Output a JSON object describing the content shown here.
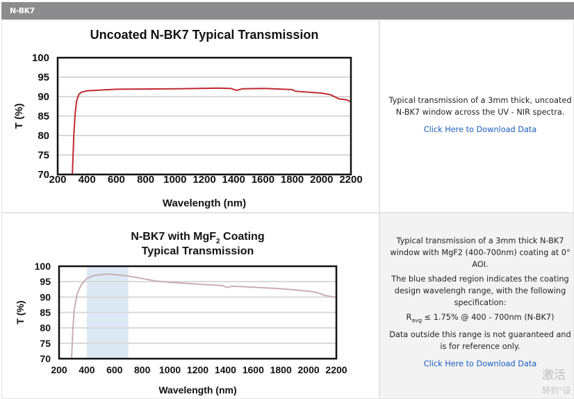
{
  "section_title": "N-BK7",
  "row1": {
    "description": "Typical transmission of a 3mm thick, uncoated N-BK7 window across the UV - NIR spectra.",
    "link": "Click Here to Download Data"
  },
  "row2": {
    "description1": "Typical transmission of a 3mm thick N-BK7 window with MgF2 (400-700nm) coating at 0° AOI.",
    "description2": "The blue shaded region indicates the coating design wavelengh range, with the following specification:",
    "spec_r": "R",
    "spec_sub": "avg",
    "spec_rest": " ≤ 1.75% @ 400 - 700nm (N-BK7)",
    "description3": "Data outside this range is not guaranteed and is for reference only.",
    "link": "Click Here to Download Data"
  },
  "watermark": {
    "line1": "激活",
    "line2": "转到\"设"
  },
  "chart_data": [
    {
      "type": "line",
      "title": "Uncoated N-BK7 Typical Transmission",
      "xlabel": "Wavelength (nm)",
      "ylabel": "T (%)",
      "xlim": [
        200,
        2200
      ],
      "ylim": [
        70,
        100
      ],
      "xticks": [
        "200",
        "400",
        "600",
        "800",
        "1000",
        "1200",
        "1400",
        "1600",
        "1800",
        "2000",
        "2200"
      ],
      "yticks": [
        "70",
        "75",
        "80",
        "85",
        "90",
        "95",
        "100"
      ],
      "grid": true,
      "color": "#c0282e",
      "x": [
        300,
        310,
        320,
        330,
        345,
        360,
        400,
        600,
        1000,
        1300,
        1380,
        1420,
        1460,
        1600,
        1800,
        1820,
        2000,
        2060,
        2120,
        2170,
        2200
      ],
      "y": [
        70,
        80,
        86,
        89,
        90.6,
        91.1,
        91.5,
        91.9,
        92,
        92.2,
        92.1,
        91.6,
        92,
        92.1,
        91.8,
        91.4,
        90.9,
        90.5,
        89.4,
        89.2,
        88.6
      ]
    },
    {
      "type": "line",
      "title": "N-BK7 with MgF",
      "title_sub": "2",
      "title_rest": " Coating",
      "title_line2": "Typical Transmission",
      "xlabel": "Wavelength (nm)",
      "ylabel": "T (%)",
      "xlim": [
        200,
        2200
      ],
      "ylim": [
        70,
        100
      ],
      "xticks": [
        "200",
        "400",
        "600",
        "800",
        "1000",
        "1200",
        "1400",
        "1600",
        "1800",
        "2000",
        "2200"
      ],
      "yticks": [
        "70",
        "75",
        "80",
        "85",
        "90",
        "95",
        "100"
      ],
      "grid": true,
      "color": "#c9aeb4",
      "shaded_range": [
        400,
        700
      ],
      "shade_color": "#dce9f5",
      "x": [
        290,
        300,
        310,
        330,
        360,
        400,
        450,
        550,
        650,
        700,
        800,
        900,
        1000,
        1200,
        1380,
        1410,
        1450,
        1600,
        1800,
        2000,
        2060,
        2120,
        2200
      ],
      "y": [
        70,
        80,
        86,
        91,
        94,
        96,
        97,
        97.5,
        97.1,
        96.8,
        96,
        95.2,
        94.8,
        94.2,
        93.7,
        93.1,
        93.5,
        93.2,
        92.7,
        91.9,
        91.5,
        90.5,
        89.9
      ]
    }
  ]
}
